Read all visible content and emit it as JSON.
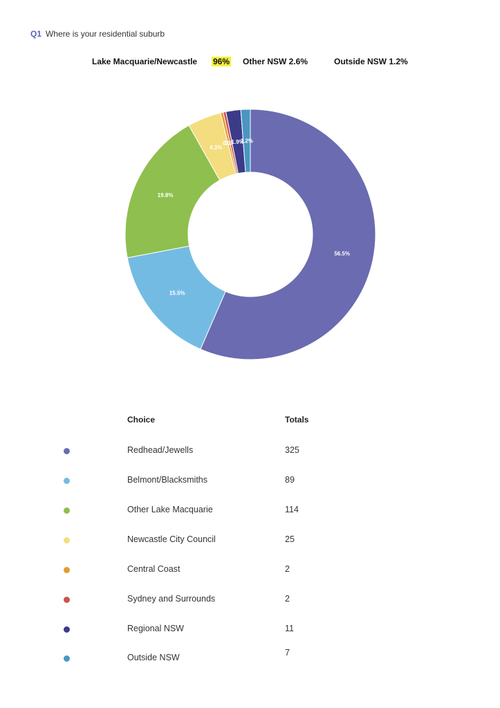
{
  "question": {
    "number": "Q1",
    "text": "Where is your residential suburb"
  },
  "summary": {
    "lake_label": "Lake Macquarie/Newcastle",
    "lake_pct": "96%",
    "other_nsw": "Other NSW 2.6%",
    "outside_nsw": "Outside NSW 1.2%"
  },
  "table": {
    "header_choice": "Choice",
    "header_totals": "Totals"
  },
  "chart_data": {
    "type": "pie",
    "donut": true,
    "categories": [
      "Redhead/Jewells",
      "Belmont/Blacksmiths",
      "Other Lake Macquarie",
      "Newcastle City Council",
      "Central Coast",
      "Sydney and Surrounds",
      "Regional NSW",
      "Outside NSW"
    ],
    "values": [
      325,
      89,
      114,
      25,
      2,
      2,
      11,
      7
    ],
    "percent_labels": [
      "56.5%",
      "15.5%",
      "19.8%",
      "4.3%",
      "0.3%",
      "0.3%",
      "1.9%",
      "1.2%"
    ],
    "colors": [
      "#6a6bb0",
      "#74bbe3",
      "#8fbf4e",
      "#f4dd7e",
      "#e59a32",
      "#d0524f",
      "#3b3b8a",
      "#4a96c1"
    ]
  }
}
